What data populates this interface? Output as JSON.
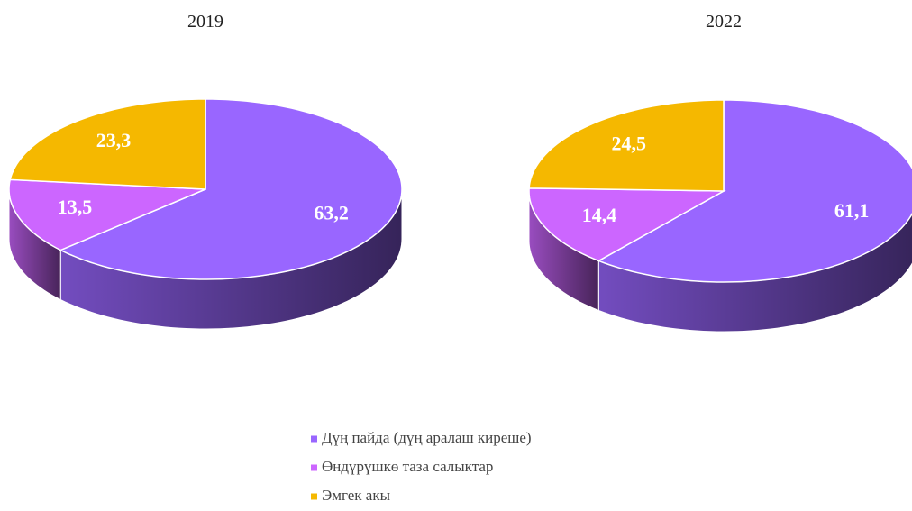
{
  "chart_data": [
    {
      "type": "pie",
      "title": "2019",
      "values": [
        63.2,
        13.5,
        23.3
      ],
      "value_labels": [
        "63,2",
        "13,5",
        "23,3"
      ]
    },
    {
      "type": "pie",
      "title": "2022",
      "values": [
        61.1,
        14.4,
        24.5
      ],
      "value_labels": [
        "61,1",
        "14,4",
        "24,5"
      ]
    }
  ],
  "legend": {
    "categories": [
      "Дүң пайда (дүң аралаш киреше)",
      "Өндүрүшкө таза салыктар",
      "Эмгек акы"
    ],
    "colors": [
      "#9966ff",
      "#cc66ff",
      "#f5b800"
    ]
  }
}
